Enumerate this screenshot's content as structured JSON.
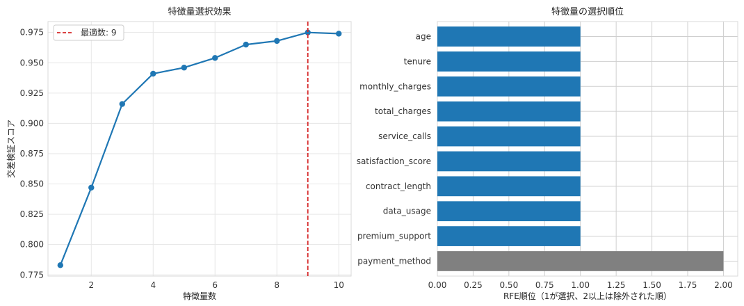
{
  "chart_data": [
    {
      "type": "line",
      "title": "特徴量選択効果",
      "xlabel": "特徴量数",
      "ylabel": "交差検証スコア",
      "x": [
        1,
        2,
        3,
        4,
        5,
        6,
        7,
        8,
        9,
        10
      ],
      "y": [
        0.783,
        0.847,
        0.916,
        0.941,
        0.946,
        0.954,
        0.965,
        0.968,
        0.975,
        0.974
      ],
      "xlim": [
        0.6,
        10.4
      ],
      "ylim": [
        0.774,
        0.984
      ],
      "xticks": [
        2,
        4,
        6,
        8,
        10
      ],
      "yticks": [
        0.775,
        0.8,
        0.825,
        0.85,
        0.875,
        0.9,
        0.925,
        0.95,
        0.975
      ],
      "xtick_labels": [
        "2",
        "4",
        "6",
        "8",
        "10"
      ],
      "ytick_labels": [
        "0.775",
        "0.800",
        "0.825",
        "0.850",
        "0.875",
        "0.900",
        "0.925",
        "0.950",
        "0.975"
      ],
      "line_color": "#1f77b4",
      "vline": {
        "x": 9,
        "color": "#d62728",
        "style": "dashed"
      },
      "legend": {
        "label": "最適数: 9",
        "placement": "top-left"
      },
      "grid": true
    },
    {
      "type": "bar",
      "orientation": "horizontal",
      "title": "特徴量の選択順位",
      "xlabel": "RFE順位（1が選択、2以上は除外された順）",
      "ylabel": "",
      "categories": [
        "age",
        "tenure",
        "monthly_charges",
        "total_charges",
        "service_calls",
        "satisfaction_score",
        "contract_length",
        "data_usage",
        "premium_support",
        "payment_method"
      ],
      "values": [
        1,
        1,
        1,
        1,
        1,
        1,
        1,
        1,
        1,
        2
      ],
      "bar_colors": [
        "#1f77b4",
        "#1f77b4",
        "#1f77b4",
        "#1f77b4",
        "#1f77b4",
        "#1f77b4",
        "#1f77b4",
        "#1f77b4",
        "#1f77b4",
        "#808080"
      ],
      "xlim": [
        0,
        2.1
      ],
      "xticks": [
        0,
        0.25,
        0.5,
        0.75,
        1.0,
        1.25,
        1.5,
        1.75,
        2.0
      ],
      "xtick_labels": [
        "0.00",
        "0.25",
        "0.50",
        "0.75",
        "1.00",
        "1.25",
        "1.50",
        "1.75",
        "2.00"
      ],
      "grid": true
    }
  ]
}
